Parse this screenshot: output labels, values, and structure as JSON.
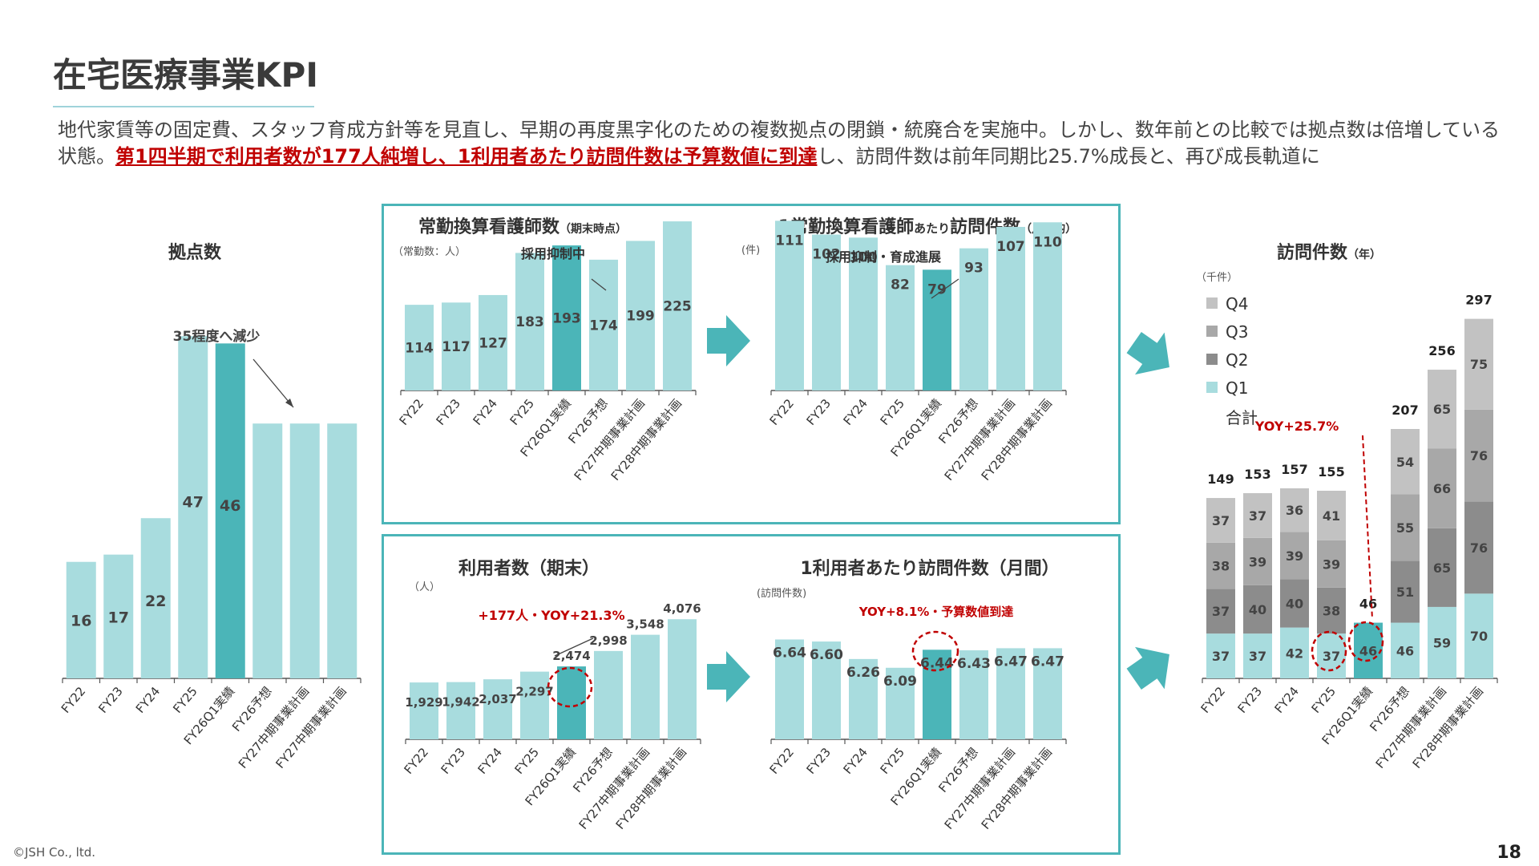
{
  "page": {
    "title": "在宅医療事業KPI",
    "intro_plain1": "地代家賃等の固定費、スタッフ育成方針等を見直し、早期の再度黒字化のための複数拠点の閉鎖・統廃合を実施中。しかし、数年前との比較では拠点数は倍増している状態。",
    "intro_highlight": "第1四半期で利用者数が177人純増し、1利用者あたり訪問件数は予算数値に到達",
    "intro_plain2": "し、訪問件数は前年同期比25.7%成長と、再び成長軌道に",
    "footer": "©JSH Co., ltd.",
    "page_number": "18"
  },
  "colors": {
    "bar": "#a8dcde",
    "highlight": "#4bb5b8",
    "q4": "#c2c2c2",
    "q3": "#a8a8a8",
    "q2": "#8c8c8c",
    "q1": "#a8dcde",
    "red": "#c00000"
  },
  "chart_data": [
    {
      "id": "bases",
      "type": "bar",
      "title": "拠点数",
      "categories": [
        "FY22",
        "FY23",
        "FY24",
        "FY25",
        "FY26Q1実績",
        "FY26予想",
        "FY27中期事業計画",
        "FY27中期事業計画"
      ],
      "values": [
        16,
        17,
        22,
        47,
        46,
        null,
        null,
        null
      ],
      "bar_heights": [
        16,
        17,
        22,
        47,
        46,
        35,
        35,
        35
      ],
      "highlight_index": 4,
      "annotation": "35程度へ減少",
      "ylim": [
        0,
        50
      ]
    },
    {
      "id": "nurses",
      "type": "bar",
      "title": "常勤換算看護師数",
      "title_suffix": "（期末時点）",
      "unit": "（常勤数：人）",
      "categories": [
        "FY22",
        "FY23",
        "FY24",
        "FY25",
        "FY26Q1実績",
        "FY26予想",
        "FY27中期事業計画",
        "FY28中期事業計画"
      ],
      "values": [
        114,
        117,
        127,
        183,
        193,
        174,
        199,
        225
      ],
      "highlight_index": 4,
      "annotation": "採用抑制中",
      "ylim": [
        0,
        240
      ]
    },
    {
      "id": "visits_per_nurse",
      "type": "bar",
      "title": "1常勤換算看護師",
      "title_small": "あたり",
      "title_rest": "訪問件数",
      "title_suffix": "（月平均）",
      "unit": "(件)",
      "categories": [
        "FY22",
        "FY23",
        "FY24",
        "FY25",
        "FY26Q1実績",
        "FY26予想",
        "FY27中期事業計画",
        "FY28中期事業計画"
      ],
      "values": [
        111,
        102,
        100,
        82,
        79,
        93,
        107,
        110
      ],
      "highlight_index": 4,
      "annotation": "採用抑制・育成進展",
      "ylim": [
        0,
        118
      ]
    },
    {
      "id": "users",
      "type": "bar",
      "title": "利用者数（期末）",
      "unit": "（人）",
      "categories": [
        "FY22",
        "FY23",
        "FY24",
        "FY25",
        "FY26Q1実績",
        "FY26予想",
        "FY27中期事業計画",
        "FY28中期事業計画"
      ],
      "values": [
        1929,
        1942,
        2037,
        2297,
        2474,
        2998,
        3548,
        4076
      ],
      "labels": [
        "1,929",
        "1,942",
        "2,037",
        "2,297",
        "2,474",
        "2,998",
        "3,548",
        "4,076"
      ],
      "highlight_index": 4,
      "annotation": "+177人・YOY+21.3%",
      "ylim": [
        0,
        4300
      ]
    },
    {
      "id": "visits_per_user",
      "type": "bar",
      "title": "1利用者あたり訪問件数（月間）",
      "unit": "(訪問件数)",
      "categories": [
        "FY22",
        "FY23",
        "FY24",
        "FY25",
        "FY26Q1実績",
        "FY26予想",
        "FY27中期事業計画",
        "FY28中期事業計画"
      ],
      "values": [
        6.64,
        6.6,
        6.26,
        6.09,
        6.44,
        6.43,
        6.47,
        6.47
      ],
      "labels": [
        "6.64",
        "6.60",
        "6.26",
        "6.09",
        "6.44",
        "6.43",
        "6.47",
        "6.47"
      ],
      "highlight_index": 4,
      "annotation": "YOY+8.1%・予算数値到達",
      "ylim": [
        4.7,
        6.85
      ]
    },
    {
      "id": "visits",
      "type": "bar",
      "stacked": true,
      "title": "訪問件数",
      "title_suffix": "（年）",
      "unit": "（千件）",
      "categories": [
        "FY22",
        "FY23",
        "FY24",
        "FY25",
        "FY26Q1実績",
        "FY26予想",
        "FY27中期事業計画",
        "FY28中期事業計画"
      ],
      "series": [
        {
          "name": "Q1",
          "values": [
            37,
            37,
            42,
            37,
            46,
            46,
            59,
            70
          ]
        },
        {
          "name": "Q2",
          "values": [
            37,
            40,
            40,
            38,
            null,
            51,
            65,
            76
          ]
        },
        {
          "name": "Q3",
          "values": [
            38,
            39,
            39,
            39,
            null,
            55,
            66,
            76
          ]
        },
        {
          "name": "Q4",
          "values": [
            37,
            37,
            36,
            41,
            null,
            54,
            65,
            75
          ]
        }
      ],
      "totals": [
        149,
        153,
        157,
        155,
        46,
        207,
        256,
        297
      ],
      "total_label": "合計",
      "legend": [
        "Q4",
        "Q3",
        "Q2",
        "Q1",
        "合計"
      ],
      "highlight_index": 4,
      "annotation": "YOY+25.7%",
      "ylim": [
        0,
        310
      ]
    }
  ]
}
